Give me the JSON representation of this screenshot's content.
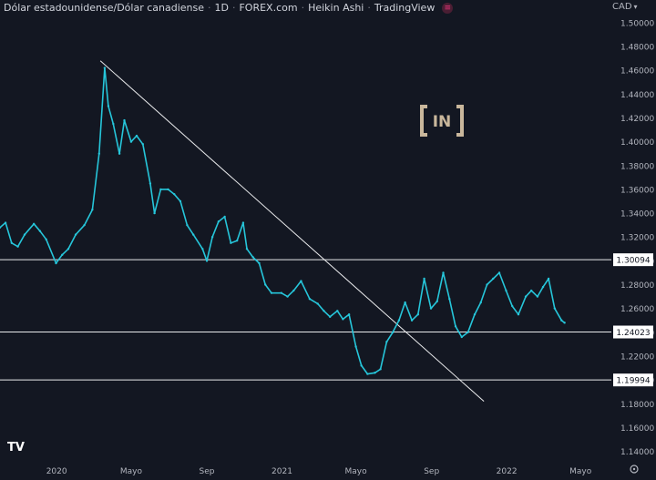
{
  "header": {
    "symbol": "Dólar estadounidense/Dólar canadiense",
    "interval": "1D",
    "exchange": "FOREX.com",
    "chart_style": "Heikin Ashi",
    "source": "TradingView",
    "indicator_icon": "indicator-dot-icon"
  },
  "currency_label": "CAD",
  "watermark_text": "IN",
  "logo_text": "TV",
  "colors": {
    "background": "#131722",
    "price_line": "#26c6da",
    "level_line": "#e9eaec",
    "text": "#b2b5be",
    "label_bg": "#ffffff",
    "label_text": "#131722",
    "watermark": "#c9b79c"
  },
  "chart_data": {
    "type": "line",
    "title": "Dólar estadounidense/Dólar canadiense · 1D · FOREX.com · Heikin Ashi",
    "x_ticks": [
      "2020",
      "Mayo",
      "Sep",
      "2021",
      "Mayo",
      "Sep",
      "2022",
      "Mayo"
    ],
    "y_ticks": [
      1.14,
      1.16,
      1.18,
      1.2,
      1.22,
      1.24,
      1.26,
      1.28,
      1.3,
      1.32,
      1.34,
      1.36,
      1.38,
      1.4,
      1.42,
      1.44,
      1.46,
      1.48,
      1.5
    ],
    "ylim": [
      1.132,
      1.516
    ],
    "xlim": [
      "2019-10-01",
      "2022-06-20"
    ],
    "series": [
      {
        "points": [
          [
            "2019-10-01",
            1.328
          ],
          [
            "2019-10-10",
            1.332
          ],
          [
            "2019-10-20",
            1.315
          ],
          [
            "2019-10-30",
            1.312
          ],
          [
            "2019-11-10",
            1.322
          ],
          [
            "2019-11-25",
            1.331
          ],
          [
            "2019-12-05",
            1.325
          ],
          [
            "2019-12-15",
            1.318
          ],
          [
            "2019-12-31",
            1.298
          ],
          [
            "2020-01-10",
            1.305
          ],
          [
            "2020-01-20",
            1.31
          ],
          [
            "2020-02-01",
            1.322
          ],
          [
            "2020-02-15",
            1.33
          ],
          [
            "2020-02-28",
            1.343
          ],
          [
            "2020-03-10",
            1.39
          ],
          [
            "2020-03-19",
            1.462
          ],
          [
            "2020-03-25",
            1.43
          ],
          [
            "2020-04-02",
            1.415
          ],
          [
            "2020-04-12",
            1.39
          ],
          [
            "2020-04-20",
            1.418
          ],
          [
            "2020-05-01",
            1.4
          ],
          [
            "2020-05-10",
            1.405
          ],
          [
            "2020-05-20",
            1.398
          ],
          [
            "2020-06-01",
            1.365
          ],
          [
            "2020-06-08",
            1.34
          ],
          [
            "2020-06-18",
            1.36
          ],
          [
            "2020-06-30",
            1.36
          ],
          [
            "2020-07-10",
            1.356
          ],
          [
            "2020-07-20",
            1.35
          ],
          [
            "2020-07-31",
            1.33
          ],
          [
            "2020-08-10",
            1.322
          ],
          [
            "2020-08-25",
            1.31
          ],
          [
            "2020-09-01",
            1.3
          ],
          [
            "2020-09-10",
            1.32
          ],
          [
            "2020-09-20",
            1.333
          ],
          [
            "2020-09-30",
            1.337
          ],
          [
            "2020-10-10",
            1.315
          ],
          [
            "2020-10-20",
            1.317
          ],
          [
            "2020-10-30",
            1.332
          ],
          [
            "2020-11-05",
            1.31
          ],
          [
            "2020-11-15",
            1.303
          ],
          [
            "2020-11-25",
            1.298
          ],
          [
            "2020-12-05",
            1.28
          ],
          [
            "2020-12-15",
            1.273
          ],
          [
            "2020-12-31",
            1.273
          ],
          [
            "2021-01-10",
            1.27
          ],
          [
            "2021-01-20",
            1.275
          ],
          [
            "2021-02-01",
            1.283
          ],
          [
            "2021-02-15",
            1.268
          ],
          [
            "2021-02-28",
            1.264
          ],
          [
            "2021-03-10",
            1.258
          ],
          [
            "2021-03-20",
            1.253
          ],
          [
            "2021-04-01",
            1.258
          ],
          [
            "2021-04-10",
            1.251
          ],
          [
            "2021-04-20",
            1.255
          ],
          [
            "2021-05-01",
            1.228
          ],
          [
            "2021-05-10",
            1.212
          ],
          [
            "2021-05-20",
            1.205
          ],
          [
            "2021-06-01",
            1.206
          ],
          [
            "2021-06-10",
            1.209
          ],
          [
            "2021-06-20",
            1.232
          ],
          [
            "2021-06-30",
            1.24
          ],
          [
            "2021-07-10",
            1.25
          ],
          [
            "2021-07-20",
            1.265
          ],
          [
            "2021-07-31",
            1.25
          ],
          [
            "2021-08-10",
            1.255
          ],
          [
            "2021-08-20",
            1.285
          ],
          [
            "2021-08-31",
            1.26
          ],
          [
            "2021-09-10",
            1.266
          ],
          [
            "2021-09-20",
            1.29
          ],
          [
            "2021-09-30",
            1.268
          ],
          [
            "2021-10-10",
            1.245
          ],
          [
            "2021-10-20",
            1.236
          ],
          [
            "2021-10-30",
            1.24
          ],
          [
            "2021-11-10",
            1.255
          ],
          [
            "2021-11-20",
            1.265
          ],
          [
            "2021-11-30",
            1.28
          ],
          [
            "2021-12-10",
            1.285
          ],
          [
            "2021-12-20",
            1.29
          ],
          [
            "2021-12-31",
            1.275
          ],
          [
            "2022-01-10",
            1.262
          ],
          [
            "2022-01-20",
            1.255
          ],
          [
            "2022-02-01",
            1.27
          ],
          [
            "2022-02-10",
            1.275
          ],
          [
            "2022-02-20",
            1.27
          ],
          [
            "2022-03-01",
            1.278
          ],
          [
            "2022-03-10",
            1.285
          ],
          [
            "2022-03-20",
            1.26
          ],
          [
            "2022-03-31",
            1.25
          ],
          [
            "2022-04-05",
            1.248
          ]
        ]
      }
    ],
    "horizontal_levels": [
      1.30094,
      1.24023,
      1.19994
    ],
    "level_labels": [
      "1.30094",
      "1.24023",
      "1.19994"
    ],
    "trendline": [
      [
        "2020-03-12",
        1.468
      ],
      [
        "2021-11-25",
        1.182
      ]
    ],
    "grid": false,
    "legend": "none"
  }
}
